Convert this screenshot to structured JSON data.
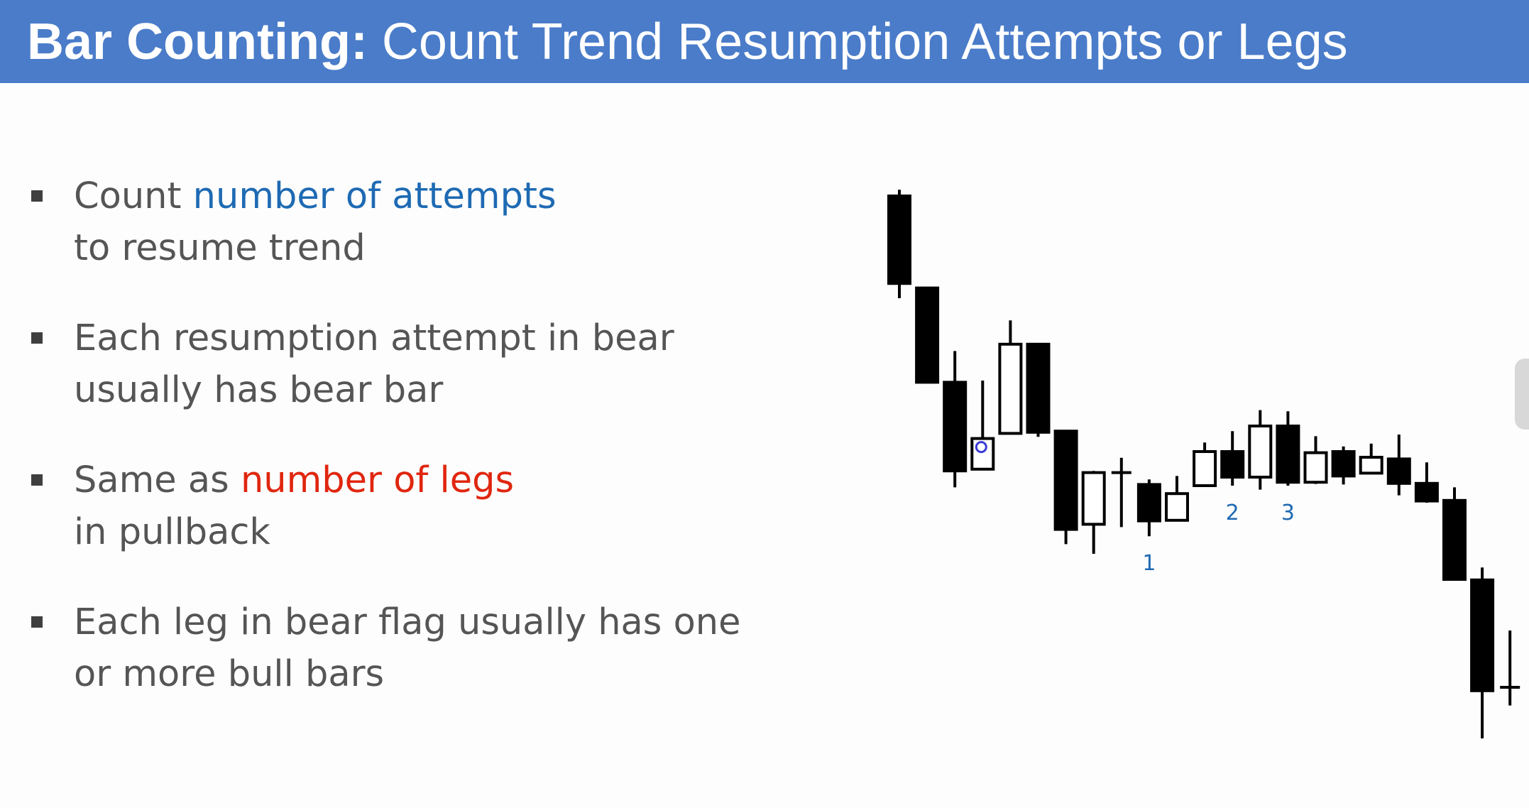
{
  "slide": {
    "title_bold": "Bar Counting:",
    "title_rest": " Count Trend Resumption Attempts or Legs"
  },
  "bullets": [
    {
      "pre": "Count ",
      "highlight": "number of attempts",
      "highlight_color": "#1e6ab3",
      "line2": "to resume trend"
    },
    {
      "pre": "Each resumption attempt in bear",
      "line2": "usually has bear bar"
    },
    {
      "pre": "Same as ",
      "highlight": "number of legs",
      "highlight_color": "#e0260f",
      "line2": "in pullback"
    },
    {
      "pre": "Each leg in bear flag usually has one",
      "line2": "or more bull bars"
    }
  ],
  "chart_data": {
    "type": "candlestick",
    "price_range": [
      0,
      100
    ],
    "colors": {
      "bear_fill": "#000000",
      "bull_fill": "#ffffff",
      "outline": "#000000",
      "label": "#1e6ab3",
      "cursor": "#3a3ad6"
    },
    "bars": [
      {
        "open": 95.5,
        "close": 80.1,
        "high": 96.6,
        "low": 77.5
      },
      {
        "open": 79.3,
        "close": 62.7,
        "high": 79.3,
        "low": 62.7
      },
      {
        "open": 62.7,
        "close": 47.1,
        "high": 68.2,
        "low": 44.2
      },
      {
        "open": 47.4,
        "close": 52.8,
        "high": 63.0,
        "low": 47.4
      },
      {
        "open": 53.7,
        "close": 69.4,
        "high": 73.6,
        "low": 53.7
      },
      {
        "open": 69.4,
        "close": 53.9,
        "high": 69.4,
        "low": 53.1
      },
      {
        "open": 54.1,
        "close": 36.8,
        "high": 54.1,
        "low": 34.2
      },
      {
        "open": 37.7,
        "close": 46.8,
        "high": 47.1,
        "low": 32.5
      },
      {
        "open": 46.8,
        "close": 46.8,
        "high": 49.4,
        "low": 37.2
      },
      {
        "open": 44.7,
        "close": 38.3,
        "high": 45.6,
        "low": 35.6
      },
      {
        "open": 38.4,
        "close": 43.1,
        "high": 46.2,
        "low": 38.4
      },
      {
        "open": 44.5,
        "close": 50.5,
        "high": 52.1,
        "low": 44.5
      },
      {
        "open": 50.5,
        "close": 46.0,
        "high": 54.1,
        "low": 44.5
      },
      {
        "open": 46.0,
        "close": 55.0,
        "high": 57.8,
        "low": 43.8
      },
      {
        "open": 55.0,
        "close": 45.1,
        "high": 57.6,
        "low": 44.5
      },
      {
        "open": 45.1,
        "close": 50.3,
        "high": 53.2,
        "low": 44.8
      },
      {
        "open": 50.5,
        "close": 46.2,
        "high": 51.4,
        "low": 44.7
      },
      {
        "open": 46.7,
        "close": 49.5,
        "high": 51.9,
        "low": 46.7
      },
      {
        "open": 49.2,
        "close": 44.9,
        "high": 53.5,
        "low": 42.8
      },
      {
        "open": 44.9,
        "close": 41.8,
        "high": 48.6,
        "low": 41.5
      },
      {
        "open": 41.9,
        "close": 28.0,
        "high": 44.2,
        "low": 28.0
      },
      {
        "open": 27.9,
        "close": 8.4,
        "high": 30.1,
        "low": 0.0
      },
      {
        "open": 9.0,
        "close": 9.0,
        "high": 19.0,
        "low": 5.8
      }
    ],
    "labels": [
      {
        "text": "1",
        "bar_index": 9,
        "below": "near"
      },
      {
        "text": "2",
        "bar_index": 12,
        "below": "near"
      },
      {
        "text": "3",
        "bar_index": 14,
        "below": "near"
      }
    ],
    "cursor_bar_index": 3
  }
}
